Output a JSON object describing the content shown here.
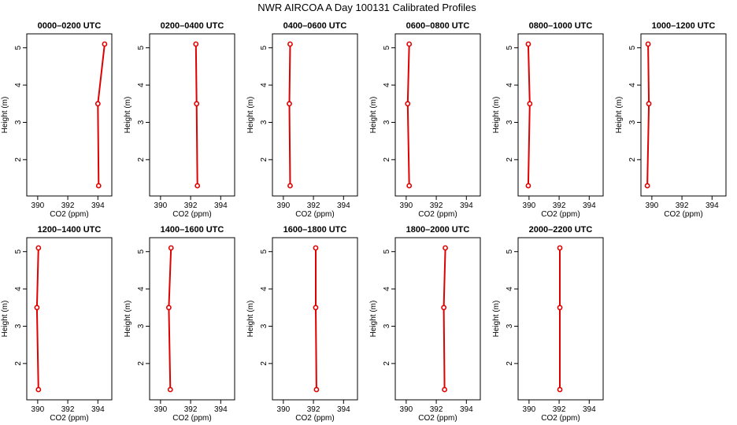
{
  "title": "NWR AIRCOA A  Day 100131  Calibrated Profiles",
  "style": {
    "line_color": "#e00000",
    "marker_color": "#e00000"
  },
  "chart_data": [
    {
      "type": "line",
      "title": "0000–0200 UTC",
      "xlabel": "CO2 (ppm)",
      "ylabel": "Height (m)",
      "xlim": [
        389.5,
        394.7
      ],
      "ylim": [
        1.2,
        5.2
      ],
      "xticks": [
        390,
        392,
        394
      ],
      "yticks": [
        2,
        3,
        4,
        5
      ],
      "x": [
        394.05,
        394.0,
        394.45
      ],
      "y": [
        1.3,
        3.5,
        5.1
      ]
    },
    {
      "type": "line",
      "title": "0200–0400 UTC",
      "xlabel": "CO2 (ppm)",
      "ylabel": "Height (m)",
      "xlim": [
        389.5,
        394.7
      ],
      "ylim": [
        1.2,
        5.2
      ],
      "xticks": [
        390,
        392,
        394
      ],
      "yticks": [
        2,
        3,
        4,
        5
      ],
      "x": [
        392.45,
        392.4,
        392.35
      ],
      "y": [
        1.3,
        3.5,
        5.1
      ]
    },
    {
      "type": "line",
      "title": "0400–0600 UTC",
      "xlabel": "CO2 (ppm)",
      "ylabel": "Height (m)",
      "xlim": [
        389.5,
        394.7
      ],
      "ylim": [
        1.2,
        5.2
      ],
      "xticks": [
        390,
        392,
        394
      ],
      "yticks": [
        2,
        3,
        4,
        5
      ],
      "x": [
        390.45,
        390.4,
        390.45
      ],
      "y": [
        1.3,
        3.5,
        5.1
      ]
    },
    {
      "type": "line",
      "title": "0600–0800 UTC",
      "xlabel": "CO2 (ppm)",
      "ylabel": "Height (m)",
      "xlim": [
        389.5,
        394.7
      ],
      "ylim": [
        1.2,
        5.2
      ],
      "xticks": [
        390,
        392,
        394
      ],
      "yticks": [
        2,
        3,
        4,
        5
      ],
      "x": [
        390.2,
        390.1,
        390.2
      ],
      "y": [
        1.3,
        3.5,
        5.1
      ]
    },
    {
      "type": "line",
      "title": "0800–1000 UTC",
      "xlabel": "CO2 (ppm)",
      "ylabel": "Height (m)",
      "xlim": [
        389.5,
        394.7
      ],
      "ylim": [
        1.2,
        5.2
      ],
      "xticks": [
        390,
        392,
        394
      ],
      "yticks": [
        2,
        3,
        4,
        5
      ],
      "x": [
        389.95,
        390.05,
        389.95
      ],
      "y": [
        1.3,
        3.5,
        5.1
      ]
    },
    {
      "type": "line",
      "title": "1000–1200 UTC",
      "xlabel": "CO2 (ppm)",
      "ylabel": "Height (m)",
      "xlim": [
        389.5,
        394.7
      ],
      "ylim": [
        1.2,
        5.2
      ],
      "xticks": [
        390,
        392,
        394
      ],
      "yticks": [
        2,
        3,
        4,
        5
      ],
      "x": [
        389.7,
        389.8,
        389.75
      ],
      "y": [
        1.3,
        3.5,
        5.1
      ]
    },
    {
      "type": "line",
      "title": "1200–1400 UTC",
      "xlabel": "CO2 (ppm)",
      "ylabel": "Height (m)",
      "xlim": [
        389.5,
        394.7
      ],
      "ylim": [
        1.2,
        5.2
      ],
      "xticks": [
        390,
        392,
        394
      ],
      "yticks": [
        2,
        3,
        4,
        5
      ],
      "x": [
        390.05,
        389.95,
        390.05
      ],
      "y": [
        1.3,
        3.5,
        5.1
      ]
    },
    {
      "type": "line",
      "title": "1400–1600 UTC",
      "xlabel": "CO2 (ppm)",
      "ylabel": "Height (m)",
      "xlim": [
        389.5,
        394.7
      ],
      "ylim": [
        1.2,
        5.2
      ],
      "xticks": [
        390,
        392,
        394
      ],
      "yticks": [
        2,
        3,
        4,
        5
      ],
      "x": [
        390.65,
        390.55,
        390.7
      ],
      "y": [
        1.3,
        3.5,
        5.1
      ]
    },
    {
      "type": "line",
      "title": "1600–1800 UTC",
      "xlabel": "CO2 (ppm)",
      "ylabel": "Height (m)",
      "xlim": [
        389.5,
        394.7
      ],
      "ylim": [
        1.2,
        5.2
      ],
      "xticks": [
        390,
        392,
        394
      ],
      "yticks": [
        2,
        3,
        4,
        5
      ],
      "x": [
        392.2,
        392.15,
        392.15
      ],
      "y": [
        1.3,
        3.5,
        5.1
      ]
    },
    {
      "type": "line",
      "title": "1800–2000 UTC",
      "xlabel": "CO2 (ppm)",
      "ylabel": "Height (m)",
      "xlim": [
        389.5,
        394.7
      ],
      "ylim": [
        1.2,
        5.2
      ],
      "xticks": [
        390,
        392,
        394
      ],
      "yticks": [
        2,
        3,
        4,
        5
      ],
      "x": [
        392.55,
        392.5,
        392.6
      ],
      "y": [
        1.3,
        3.5,
        5.1
      ]
    },
    {
      "type": "line",
      "title": "2000–2200 UTC",
      "xlabel": "CO2 (ppm)",
      "ylabel": "Height (m)",
      "xlim": [
        389.5,
        394.7
      ],
      "ylim": [
        1.2,
        5.2
      ],
      "xticks": [
        390,
        392,
        394
      ],
      "yticks": [
        2,
        3,
        4,
        5
      ],
      "x": [
        392.05,
        392.05,
        392.05
      ],
      "y": [
        1.3,
        3.5,
        5.1
      ]
    }
  ]
}
